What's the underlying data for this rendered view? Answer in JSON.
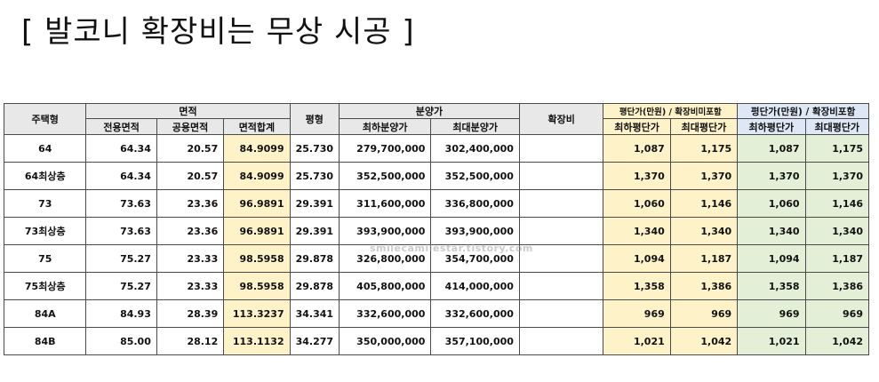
{
  "title": "[ 발코니 확장비는 무상 시공 ]",
  "watermark": "smilecamilestar.tistory.com",
  "colors": {
    "header_gray": "#e8e8e8",
    "area_total_yellow": "#fdf2c8",
    "price_incl_green": "#e4efd8",
    "header_blue": "#dde7f5"
  },
  "table": {
    "headers": {
      "type": "주택형",
      "area": "면적",
      "pyeong": "평형",
      "sale_price": "분양가",
      "expansion": "확장비",
      "price_excl": "평단가(만원) / 확장비미포함",
      "price_incl": "평단가(만원) / 확장비포함"
    },
    "subheaders": {
      "exclusive_area": "전용면적",
      "common_area": "공용면적",
      "total_area": "면적합계",
      "min_sale": "최하분양가",
      "max_sale": "최대분양가",
      "min_unit_excl": "최하평단가",
      "max_unit_excl": "최대평단가",
      "min_unit_incl": "최하평단가",
      "max_unit_incl": "최대평단가"
    },
    "rows": [
      {
        "type": "64",
        "exclusive": "64.34",
        "common": "20.57",
        "total": "84.9099",
        "pyeong": "25.730",
        "min_sale": "279,700,000",
        "max_sale": "302,400,000",
        "expansion": "",
        "min_excl": "1,087",
        "max_excl": "1,175",
        "min_incl": "1,087",
        "max_incl": "1,175"
      },
      {
        "type": "64최상층",
        "exclusive": "64.34",
        "common": "20.57",
        "total": "84.9099",
        "pyeong": "25.730",
        "min_sale": "352,500,000",
        "max_sale": "352,500,000",
        "expansion": "",
        "min_excl": "1,370",
        "max_excl": "1,370",
        "min_incl": "1,370",
        "max_incl": "1,370"
      },
      {
        "type": "73",
        "exclusive": "73.63",
        "common": "23.36",
        "total": "96.9891",
        "pyeong": "29.391",
        "min_sale": "311,600,000",
        "max_sale": "336,800,000",
        "expansion": "",
        "min_excl": "1,060",
        "max_excl": "1,146",
        "min_incl": "1,060",
        "max_incl": "1,146"
      },
      {
        "type": "73최상층",
        "exclusive": "73.63",
        "common": "23.36",
        "total": "96.9891",
        "pyeong": "29.391",
        "min_sale": "393,900,000",
        "max_sale": "393,900,000",
        "expansion": "",
        "min_excl": "1,340",
        "max_excl": "1,340",
        "min_incl": "1,340",
        "max_incl": "1,340"
      },
      {
        "type": "75",
        "exclusive": "75.27",
        "common": "23.33",
        "total": "98.5958",
        "pyeong": "29.878",
        "min_sale": "326,800,000",
        "max_sale": "354,700,000",
        "expansion": "",
        "min_excl": "1,094",
        "max_excl": "1,187",
        "min_incl": "1,094",
        "max_incl": "1,187"
      },
      {
        "type": "75최상층",
        "exclusive": "75.27",
        "common": "23.33",
        "total": "98.5958",
        "pyeong": "29.878",
        "min_sale": "405,800,000",
        "max_sale": "414,000,000",
        "expansion": "",
        "min_excl": "1,358",
        "max_excl": "1,386",
        "min_incl": "1,358",
        "max_incl": "1,386"
      },
      {
        "type": "84A",
        "exclusive": "84.93",
        "common": "28.39",
        "total": "113.3237",
        "pyeong": "34.341",
        "min_sale": "332,600,000",
        "max_sale": "332,600,000",
        "expansion": "",
        "min_excl": "969",
        "max_excl": "969",
        "min_incl": "969",
        "max_incl": "969"
      },
      {
        "type": "84B",
        "exclusive": "85.00",
        "common": "28.12",
        "total": "113.1132",
        "pyeong": "34.277",
        "min_sale": "350,000,000",
        "max_sale": "357,100,000",
        "expansion": "",
        "min_excl": "1,021",
        "max_excl": "1,042",
        "min_incl": "1,021",
        "max_incl": "1,042"
      }
    ]
  }
}
